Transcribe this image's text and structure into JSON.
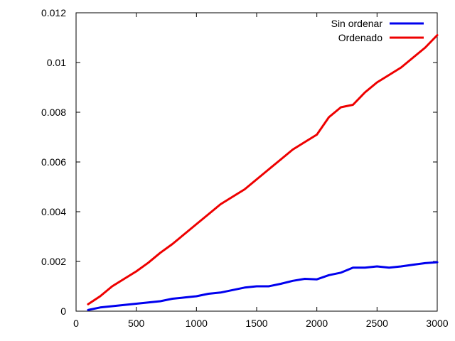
{
  "chart_data": {
    "type": "line",
    "title": "",
    "xlabel": "",
    "ylabel": "",
    "xlim": [
      0,
      3000
    ],
    "ylim": [
      0,
      0.012
    ],
    "x_ticks": [
      0,
      500,
      1000,
      1500,
      2000,
      2500,
      3000
    ],
    "x_tick_labels": [
      "0",
      "500",
      "1000",
      "1500",
      "2000",
      "2500",
      "3000"
    ],
    "y_ticks": [
      0,
      0.002,
      0.004,
      0.006,
      0.008,
      0.01,
      0.012
    ],
    "y_tick_labels": [
      "0",
      "0.002",
      "0.004",
      "0.006",
      "0.008",
      "0.01",
      "0.012"
    ],
    "grid": false,
    "legend_position": "top-right",
    "x": [
      100,
      200,
      300,
      400,
      500,
      600,
      700,
      800,
      900,
      1000,
      1100,
      1200,
      1300,
      1400,
      1500,
      1600,
      1700,
      1800,
      1900,
      2000,
      2100,
      2200,
      2300,
      2400,
      2500,
      2600,
      2700,
      2800,
      2900,
      3000
    ],
    "series": [
      {
        "name": "Sin ordenar",
        "color": "#0000ee",
        "values": [
          5e-05,
          0.00015,
          0.0002,
          0.00025,
          0.0003,
          0.00035,
          0.0004,
          0.0005,
          0.00055,
          0.0006,
          0.0007,
          0.00075,
          0.00085,
          0.00095,
          0.001,
          0.001,
          0.0011,
          0.00122,
          0.0013,
          0.00128,
          0.00145,
          0.00155,
          0.00175,
          0.00175,
          0.0018,
          0.00175,
          0.0018,
          0.00187,
          0.00193,
          0.00197
        ]
      },
      {
        "name": "Ordenado",
        "color": "#ee0000",
        "values": [
          0.00028,
          0.0006,
          0.001,
          0.0013,
          0.0016,
          0.00195,
          0.00235,
          0.0027,
          0.0031,
          0.0035,
          0.0039,
          0.0043,
          0.0046,
          0.0049,
          0.0053,
          0.0057,
          0.0061,
          0.0065,
          0.0068,
          0.0071,
          0.0078,
          0.0082,
          0.0083,
          0.0088,
          0.0092,
          0.0095,
          0.0098,
          0.0102,
          0.0106,
          0.0111
        ]
      }
    ]
  }
}
